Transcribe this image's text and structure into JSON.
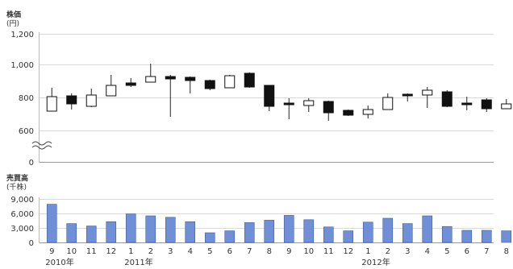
{
  "chart_data": [
    {
      "type": "candlestick",
      "title": "株価",
      "unit": "(円)",
      "y_ticks": [
        "1,200",
        "1,000",
        "800",
        "600",
        "0"
      ],
      "axis_break": true,
      "ylim": [
        600,
        1200
      ],
      "candles": [
        {
          "open": 720,
          "close": 810,
          "high": 865,
          "low": 720
        },
        {
          "open": 815,
          "close": 765,
          "high": 830,
          "low": 730
        },
        {
          "open": 750,
          "close": 820,
          "high": 860,
          "low": 745
        },
        {
          "open": 815,
          "close": 880,
          "high": 945,
          "low": 815
        },
        {
          "open": 895,
          "close": 880,
          "high": 925,
          "low": 870
        },
        {
          "open": 900,
          "close": 935,
          "high": 1015,
          "low": 900
        },
        {
          "open": 935,
          "close": 920,
          "high": 945,
          "low": 685
        },
        {
          "open": 930,
          "close": 910,
          "high": 935,
          "low": 830
        },
        {
          "open": 910,
          "close": 860,
          "high": 915,
          "low": 850
        },
        {
          "open": 865,
          "close": 940,
          "high": 945,
          "low": 865
        },
        {
          "open": 955,
          "close": 870,
          "high": 960,
          "low": 865
        },
        {
          "open": 880,
          "close": 750,
          "high": 880,
          "low": 720
        },
        {
          "open": 770,
          "close": 760,
          "high": 800,
          "low": 670
        },
        {
          "open": 755,
          "close": 785,
          "high": 800,
          "low": 715
        },
        {
          "open": 780,
          "close": 710,
          "high": 785,
          "low": 660
        },
        {
          "open": 725,
          "close": 695,
          "high": 730,
          "low": 690
        },
        {
          "open": 700,
          "close": 730,
          "high": 755,
          "low": 675
        },
        {
          "open": 730,
          "close": 805,
          "high": 830,
          "low": 730
        },
        {
          "open": 825,
          "close": 815,
          "high": 830,
          "low": 780
        },
        {
          "open": 820,
          "close": 850,
          "high": 870,
          "low": 740
        },
        {
          "open": 840,
          "close": 750,
          "high": 850,
          "low": 745
        },
        {
          "open": 770,
          "close": 760,
          "high": 810,
          "low": 725
        },
        {
          "open": 790,
          "close": 735,
          "high": 800,
          "low": 715
        },
        {
          "open": 735,
          "close": 765,
          "high": 795,
          "low": 735
        }
      ]
    },
    {
      "type": "bar",
      "title": "売買高",
      "unit": "(千株)",
      "y_ticks": [
        "9,000",
        "6,000",
        "3,000",
        "0"
      ],
      "ylim": [
        0,
        9000
      ],
      "bar_color": "#6f8fd6",
      "values": [
        7900,
        3900,
        3400,
        4300,
        5900,
        5500,
        5200,
        4300,
        2000,
        2400,
        4100,
        4600,
        5600,
        4700,
        3200,
        2400,
        4200,
        5000,
        3900,
        5500,
        3300,
        2500,
        2500,
        2400
      ]
    }
  ],
  "x_axis": {
    "months": [
      "9",
      "10",
      "11",
      "12",
      "1",
      "2",
      "3",
      "4",
      "5",
      "6",
      "7",
      "8",
      "9",
      "10",
      "11",
      "12",
      "1",
      "2",
      "3",
      "4",
      "5",
      "6",
      "7",
      "8"
    ],
    "years": [
      {
        "label": "2010年",
        "at_index": 0
      },
      {
        "label": "2011年",
        "at_index": 4
      },
      {
        "label": "2012年",
        "at_index": 16
      }
    ]
  }
}
